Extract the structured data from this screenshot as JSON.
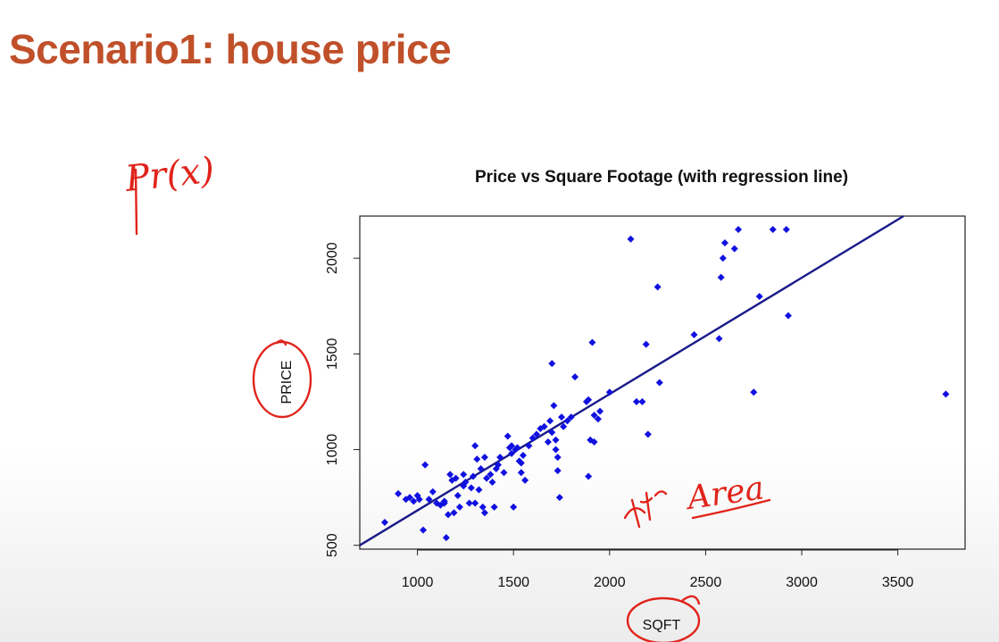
{
  "slide": {
    "title": "Scenario1: house price"
  },
  "annotations": {
    "pr_x": "Pr(x)",
    "area_note": "Area"
  },
  "colors": {
    "title": "#c0502a",
    "points": "#1010e0",
    "regression": "#1a1a8a",
    "ink": "#e0241b"
  },
  "chart_data": {
    "type": "scatter",
    "title": "Price vs Square Footage (with regression line)",
    "xlabel": "SQFT",
    "ylabel": "PRICE",
    "xlim": [
      700,
      3850
    ],
    "ylim": [
      480,
      2220
    ],
    "xticks": [
      1000,
      1500,
      2000,
      2500,
      3000,
      3500
    ],
    "yticks": [
      500,
      1000,
      1500,
      2000
    ],
    "grid": false,
    "regression": {
      "x": [
        700,
        3530
      ],
      "y": [
        500,
        2220
      ]
    },
    "x": [
      830,
      900,
      940,
      960,
      980,
      1000,
      1010,
      1030,
      1040,
      1060,
      1080,
      1100,
      1120,
      1140,
      1150,
      1160,
      1170,
      1180,
      1190,
      1200,
      1210,
      1220,
      1240,
      1250,
      1270,
      1280,
      1290,
      1300,
      1310,
      1320,
      1330,
      1340,
      1350,
      1360,
      1380,
      1390,
      1400,
      1410,
      1420,
      1430,
      1450,
      1470,
      1480,
      1490,
      1500,
      1510,
      1520,
      1530,
      1540,
      1550,
      1560,
      1580,
      1600,
      1620,
      1640,
      1660,
      1680,
      1690,
      1700,
      1710,
      1720,
      1730,
      1740,
      1750,
      1760,
      1780,
      1800,
      1820,
      1880,
      1890,
      1900,
      1910,
      1920,
      1940,
      1950,
      2000,
      2110,
      2140,
      2170,
      2190,
      2200,
      2250,
      2260,
      2440,
      2570,
      2580,
      2590,
      2600,
      2650,
      2670,
      2750,
      2780,
      2850,
      2920,
      2930,
      3750,
      1140,
      1300,
      1350,
      1490,
      1540,
      1700,
      1720,
      1730,
      1890,
      1920,
      1240
    ],
    "y": [
      620,
      770,
      740,
      750,
      730,
      760,
      740,
      580,
      920,
      740,
      780,
      720,
      710,
      720,
      540,
      660,
      870,
      840,
      670,
      850,
      760,
      700,
      870,
      830,
      720,
      800,
      860,
      720,
      950,
      790,
      900,
      700,
      670,
      850,
      870,
      830,
      700,
      900,
      920,
      960,
      880,
      1070,
      1010,
      980,
      700,
      1000,
      1010,
      940,
      880,
      970,
      840,
      1020,
      1060,
      1080,
      1110,
      1120,
      1040,
      1150,
      1450,
      1230,
      1000,
      960,
      750,
      1170,
      1120,
      1150,
      1170,
      1380,
      1250,
      860,
      1050,
      1560,
      1040,
      1160,
      1200,
      1300,
      2100,
      1250,
      1250,
      1550,
      1080,
      1850,
      1350,
      1600,
      1580,
      1900,
      2000,
      2080,
      2050,
      2150,
      1300,
      1800,
      2150,
      2150,
      1700,
      1290,
      730,
      1020,
      960,
      1020,
      930,
      1090,
      1050,
      890,
      1260,
      1180,
      810
    ]
  }
}
